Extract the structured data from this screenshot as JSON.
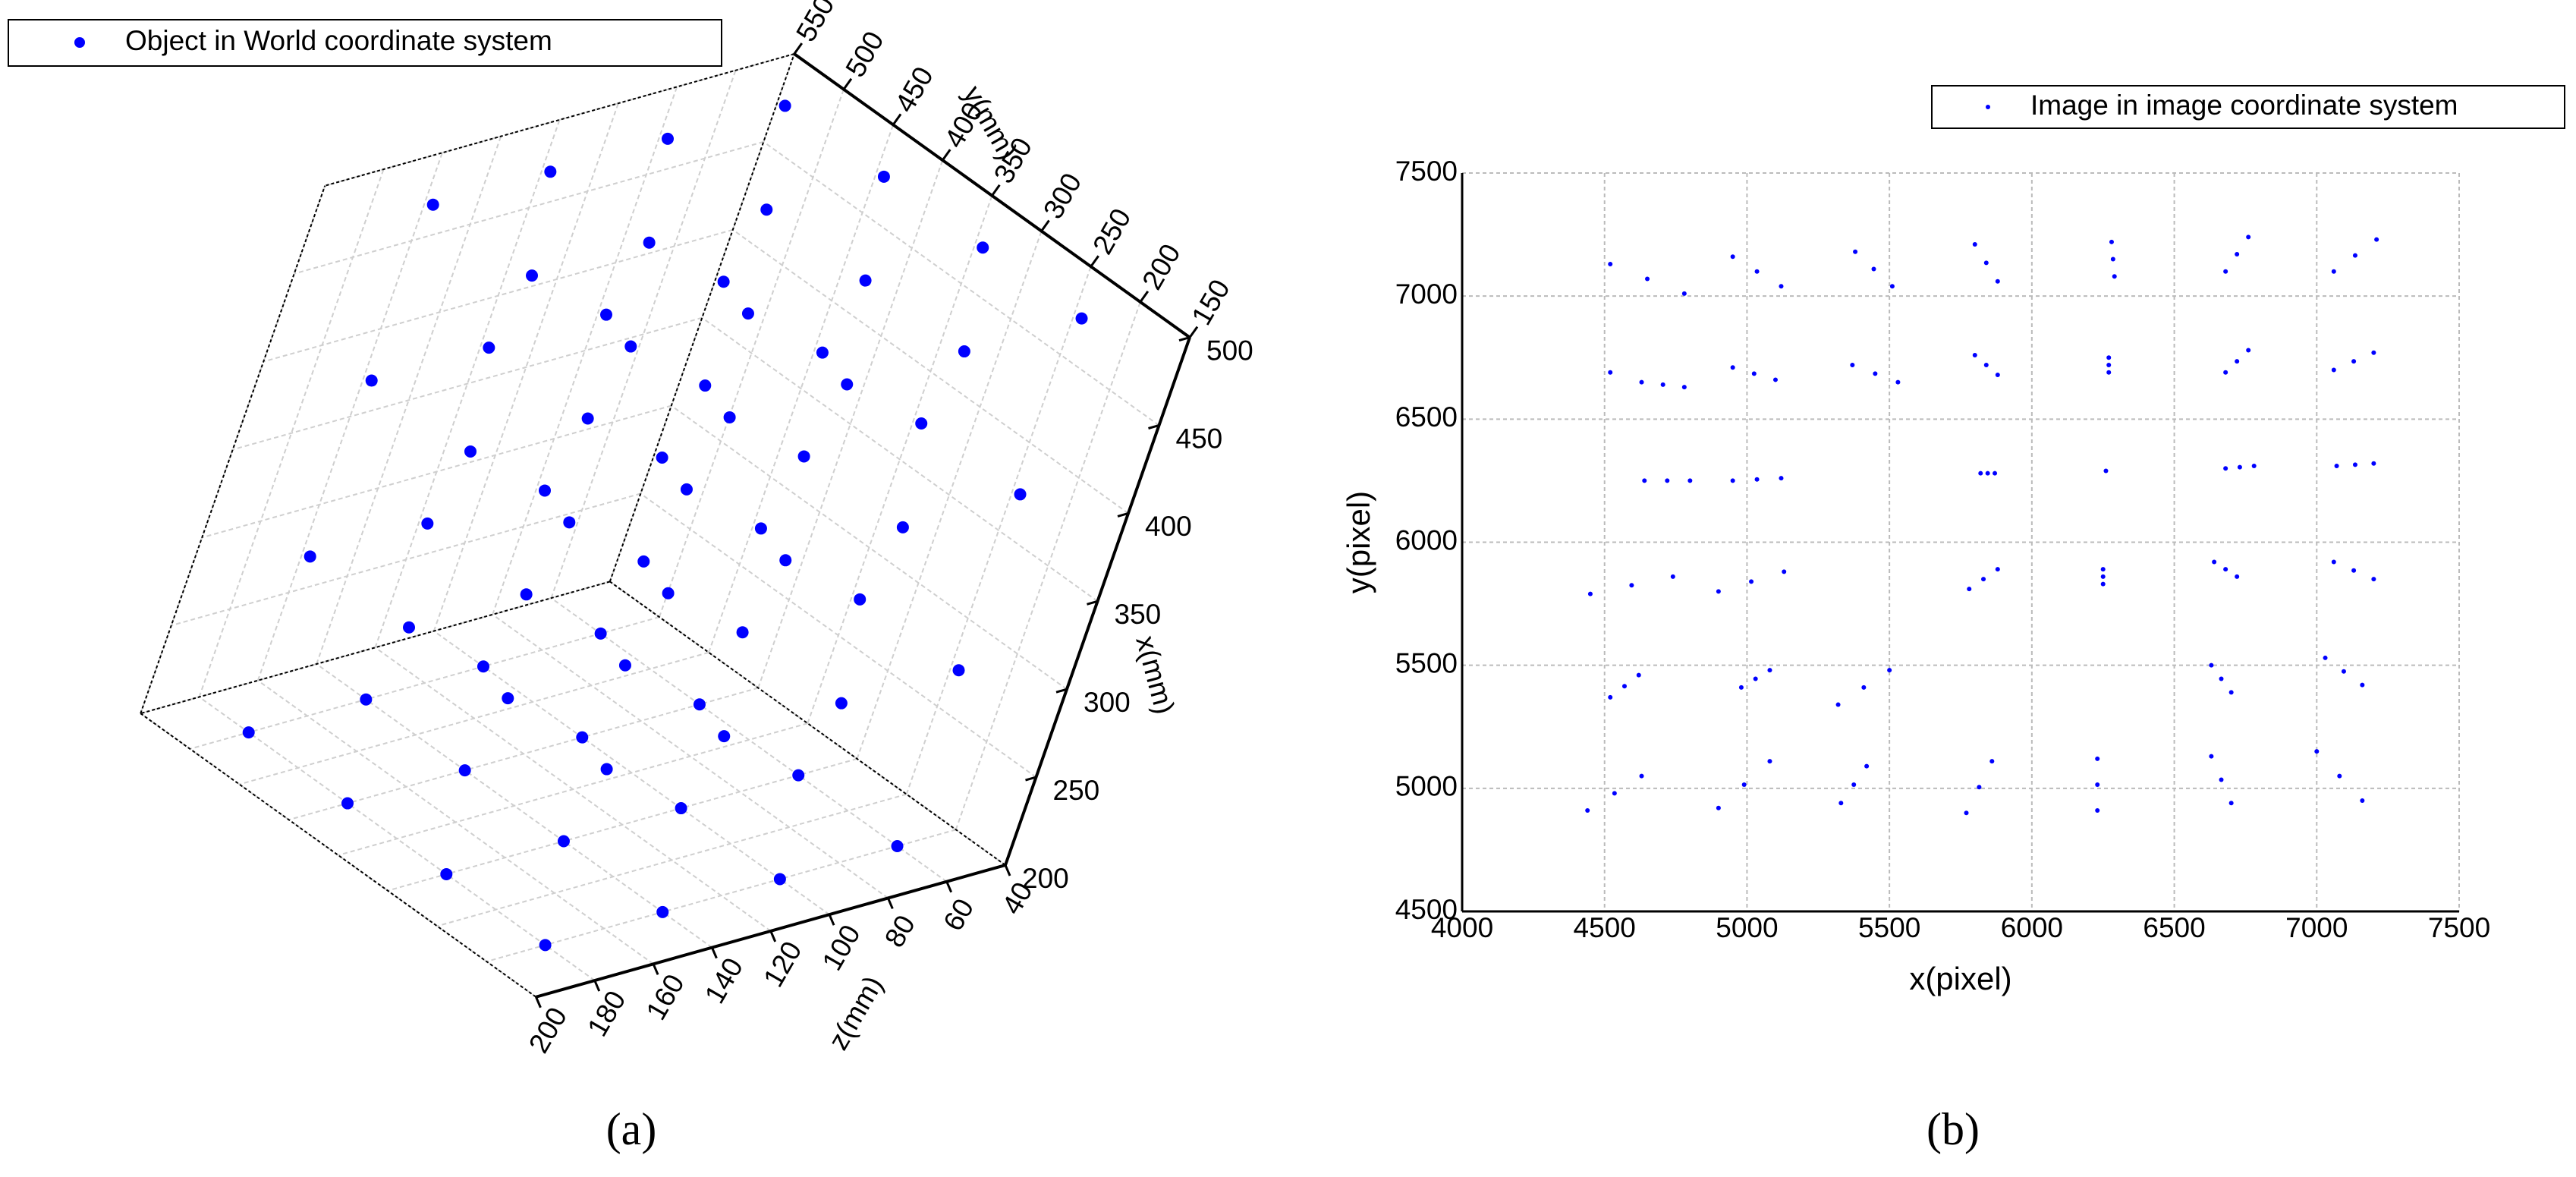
{
  "chart_data": [
    {
      "type": "scatter3d",
      "caption": "(a)",
      "xlabel": "x(mm)",
      "ylabel": "y(mm)",
      "zlabel": "z(mm)",
      "xlim": [
        200,
        500
      ],
      "ylim": [
        150,
        550
      ],
      "zlim": [
        40,
        200
      ],
      "xticks": [
        200,
        250,
        300,
        350,
        400,
        450,
        500
      ],
      "yticks": [
        150,
        200,
        250,
        300,
        350,
        400,
        450,
        500,
        550
      ],
      "zticks": [
        40,
        60,
        80,
        100,
        120,
        140,
        160,
        180,
        200
      ],
      "grid": true,
      "legend": "upper left",
      "series": [
        {
          "name": "Object in World coordinate system",
          "color": "#0000ff",
          "x": [
            200,
            200,
            200,
            200,
            200,
            200,
            200,
            200,
            200,
            200,
            200,
            200,
            200,
            200,
            200,
            200,
            300,
            300,
            300,
            300,
            300,
            300,
            300,
            300,
            300,
            300,
            300,
            300,
            300,
            300,
            300,
            300,
            400,
            400,
            400,
            400,
            400,
            400,
            400,
            400,
            400,
            400,
            400,
            400,
            400,
            400,
            400,
            400,
            500,
            500,
            500,
            500,
            500,
            500,
            500,
            500,
            500,
            500,
            500,
            500,
            500,
            500,
            500,
            500
          ],
          "y": [
            200,
            200,
            200,
            200,
            300,
            300,
            300,
            300,
            400,
            400,
            400,
            400,
            500,
            500,
            500,
            500,
            200,
            200,
            200,
            200,
            300,
            300,
            300,
            300,
            400,
            400,
            400,
            400,
            500,
            500,
            500,
            500,
            200,
            200,
            200,
            200,
            300,
            300,
            300,
            300,
            400,
            400,
            400,
            400,
            500,
            500,
            500,
            500,
            200,
            200,
            200,
            200,
            300,
            300,
            300,
            300,
            400,
            400,
            400,
            400,
            500,
            500,
            500,
            500
          ],
          "z": [
            60,
            100,
            140,
            180,
            60,
            100,
            140,
            180,
            60,
            100,
            140,
            180,
            60,
            100,
            140,
            180,
            60,
            100,
            140,
            180,
            60,
            100,
            140,
            180,
            60,
            100,
            140,
            180,
            60,
            100,
            140,
            180,
            60,
            100,
            140,
            180,
            60,
            100,
            140,
            180,
            60,
            100,
            140,
            180,
            60,
            100,
            140,
            180,
            60,
            100,
            140,
            180,
            60,
            100,
            140,
            180,
            60,
            100,
            140,
            180,
            60,
            100,
            140,
            180
          ]
        }
      ]
    },
    {
      "type": "scatter",
      "caption": "(b)",
      "xlabel": "x(pixel)",
      "ylabel": "y(pixel)",
      "xlim": [
        4000,
        7500
      ],
      "ylim": [
        4500,
        7500
      ],
      "xticks": [
        4000,
        4500,
        5000,
        5500,
        6000,
        6500,
        7000,
        7500
      ],
      "yticks": [
        4500,
        5000,
        5500,
        6000,
        6500,
        7000,
        7500
      ],
      "grid": true,
      "legend": "upper right",
      "series": [
        {
          "name": "Image in image coordinate system",
          "color": "#0000ff",
          "x": [
            4520,
            4650,
            4780,
            4950,
            5035,
            5120,
            5380,
            5445,
            5510,
            5800,
            5840,
            5880,
            6280,
            6285,
            6290,
            6680,
            6720,
            6760,
            7060,
            7135,
            7210,
            4520,
            4630,
            4705,
            4780,
            4950,
            5025,
            5100,
            5370,
            5450,
            5530,
            5800,
            5840,
            5880,
            6270,
            6270,
            6270,
            6680,
            6720,
            6760,
            7060,
            7130,
            7200,
            4640,
            4720,
            4800,
            4950,
            5035,
            5120,
            5820,
            5845,
            5870,
            6260,
            6680,
            6730,
            6780,
            7070,
            7135,
            7200,
            4450,
            4595,
            4740,
            4900,
            5015,
            5130,
            5780,
            5830,
            5880,
            6250,
            6250,
            6250,
            6640,
            6680,
            6720,
            7060,
            7130,
            7200,
            4520,
            4570,
            4620,
            4980,
            5030,
            5080,
            5320,
            5410,
            5500,
            6630,
            6665,
            6700,
            7030,
            7095,
            7160,
            4440,
            4535,
            4630,
            4900,
            4990,
            5080,
            5330,
            5375,
            5420,
            5770,
            5815,
            5860,
            6230,
            6230,
            6230,
            6630,
            6665,
            6700,
            7000,
            7080,
            7160
          ],
          "y": [
            7130,
            7070,
            7010,
            7160,
            7100,
            7040,
            7180,
            7110,
            7040,
            7210,
            7135,
            7060,
            7220,
            7150,
            7080,
            7100,
            7170,
            7240,
            7100,
            7165,
            7230,
            6690,
            6650,
            6640,
            6630,
            6710,
            6685,
            6660,
            6720,
            6685,
            6650,
            6760,
            6720,
            6680,
            6750,
            6720,
            6690,
            6690,
            6735,
            6780,
            6700,
            6735,
            6770,
            6250,
            6250,
            6250,
            6250,
            6255,
            6260,
            6280,
            6280,
            6280,
            6290,
            6300,
            6305,
            6310,
            6310,
            6315,
            6320,
            5790,
            5825,
            5860,
            5800,
            5840,
            5880,
            5810,
            5850,
            5890,
            5830,
            5860,
            5890,
            5920,
            5890,
            5860,
            5920,
            5885,
            5850,
            5370,
            5415,
            5460,
            5410,
            5445,
            5480,
            5340,
            5410,
            5480,
            5500,
            5445,
            5390,
            5530,
            5475,
            5420,
            4910,
            4980,
            5050,
            4920,
            5015,
            5110,
            4940,
            5015,
            5090,
            4900,
            5005,
            5110,
            4910,
            5015,
            5120,
            5130,
            5035,
            4940,
            5150,
            5050,
            4950
          ]
        }
      ]
    }
  ]
}
